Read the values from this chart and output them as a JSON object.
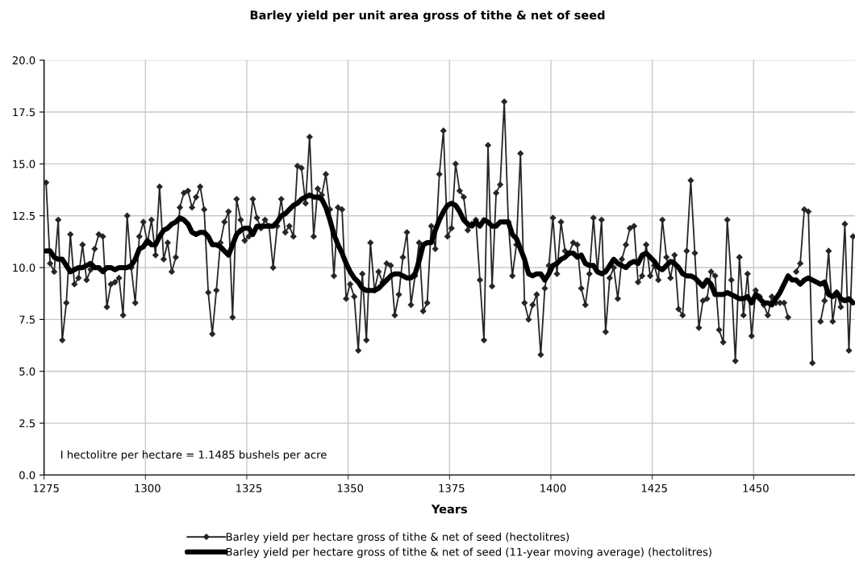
{
  "chart_data": {
    "type": "line",
    "title": "Barley yield per unit area gross of tithe & net of seed",
    "xlabel": "Years",
    "annotations": [
      "I hectolitre per hectare = 1.1485 bushels per acre"
    ],
    "categories": [
      "1275",
      null,
      null,
      null,
      null,
      null,
      null,
      null,
      null,
      null,
      null,
      null,
      null,
      null,
      null,
      null,
      null,
      null,
      null,
      null,
      null,
      null,
      null,
      null,
      null,
      "1300",
      null,
      null,
      null,
      null,
      null,
      null,
      null,
      null,
      null,
      null,
      null,
      null,
      null,
      null,
      null,
      null,
      null,
      null,
      null,
      null,
      null,
      null,
      null,
      null,
      "1325",
      null,
      null,
      null,
      null,
      null,
      null,
      null,
      null,
      null,
      null,
      null,
      null,
      null,
      null,
      null,
      null,
      null,
      null,
      null,
      null,
      null,
      null,
      null,
      null,
      "1350",
      null,
      null,
      null,
      null,
      null,
      null,
      null,
      null,
      null,
      null,
      null,
      null,
      null,
      null,
      null,
      null,
      null,
      null,
      null,
      null,
      null,
      null,
      null,
      null,
      "1375",
      null,
      null,
      null,
      null,
      null,
      null,
      null,
      null,
      null,
      null,
      null,
      null,
      null,
      null,
      null,
      null,
      null,
      null,
      null,
      null,
      null,
      null,
      null,
      null,
      "1400",
      null,
      null,
      null,
      null,
      null,
      null,
      null,
      null,
      null,
      null,
      null,
      null,
      null,
      null,
      null,
      null,
      null,
      null,
      null,
      null,
      null,
      null,
      null,
      null,
      "1425",
      null,
      null,
      null,
      null,
      null,
      null,
      null,
      null,
      null,
      null,
      null,
      null,
      null,
      null,
      null,
      null,
      null,
      null,
      null,
      null,
      null,
      null,
      null,
      null,
      "1450",
      null,
      null,
      null,
      null,
      null,
      null,
      null,
      null,
      null,
      null,
      null,
      null,
      null,
      null,
      null,
      null,
      null,
      null,
      null,
      null,
      null,
      null,
      null,
      null
    ],
    "series": [
      {
        "name": "Barley yield per hectare gross of tithe & net of seed (hectolitres)",
        "color": "#262626",
        "marker": "diamond",
        "values": [
          14.1,
          10.2,
          9.8,
          12.3,
          6.5,
          8.3,
          11.6,
          9.2,
          9.5,
          11.1,
          9.4,
          9.9,
          10.9,
          11.6,
          11.5,
          8.1,
          9.2,
          9.3,
          9.5,
          7.7,
          12.5,
          10.0,
          8.3,
          11.5,
          12.2,
          11.2,
          12.3,
          10.6,
          13.9,
          10.4,
          11.2,
          9.8,
          10.5,
          12.9,
          13.6,
          13.7,
          12.9,
          13.4,
          13.9,
          12.8,
          8.8,
          6.8,
          8.9,
          11.2,
          12.2,
          12.7,
          7.6,
          13.3,
          12.3,
          11.3,
          11.5,
          13.3,
          12.4,
          11.9,
          12.3,
          12.0,
          10.0,
          12.0,
          13.3,
          11.7,
          12.0,
          11.5,
          14.9,
          14.8,
          13.1,
          16.3,
          11.5,
          13.8,
          13.5,
          14.5,
          12.8,
          9.6,
          12.9,
          12.8,
          8.5,
          9.2,
          8.6,
          6.0,
          9.7,
          6.5,
          11.2,
          8.9,
          9.8,
          9.3,
          10.2,
          10.1,
          7.7,
          8.7,
          10.5,
          11.7,
          8.2,
          9.6,
          11.2,
          7.9,
          8.3,
          12.0,
          10.9,
          14.5,
          16.6,
          11.5,
          11.9,
          15.0,
          13.7,
          13.4,
          11.8,
          12.1,
          12.3,
          9.4,
          6.5,
          15.9,
          9.1,
          13.6,
          14.0,
          18.0,
          12.2,
          9.6,
          11.1,
          15.5,
          8.3,
          7.5,
          8.2,
          8.7,
          5.8,
          9.0,
          10.1,
          12.4,
          9.7,
          12.2,
          10.8,
          10.7,
          11.2,
          11.1,
          9.0,
          8.2,
          9.7,
          12.4,
          9.8,
          12.3,
          6.9,
          9.5,
          10.0,
          8.5,
          10.4,
          11.1,
          11.9,
          12.0,
          9.3,
          9.6,
          11.1,
          9.6,
          10.1,
          9.4,
          12.3,
          10.5,
          9.5,
          10.6,
          8.0,
          7.7,
          10.8,
          14.2,
          10.7,
          7.1,
          8.4,
          8.5,
          9.8,
          9.6,
          7.0,
          6.4,
          12.3,
          9.4,
          5.5,
          10.5,
          7.7,
          9.7,
          6.7,
          8.9,
          8.6,
          8.2,
          7.7,
          8.6,
          8.3,
          8.3,
          8.3,
          7.6,
          null,
          9.8,
          10.2,
          12.8,
          12.7,
          5.4,
          null,
          7.4,
          8.4,
          10.8,
          7.4,
          8.8,
          8.1,
          12.1,
          6.0,
          11.5
        ]
      },
      {
        "name": "Barley yield per hectare gross of tithe & net of seed (11-year moving average) (hectolitres)",
        "color": "#000000",
        "marker": "none",
        "values": [
          10.8,
          10.8,
          10.5,
          10.4,
          10.4,
          10.1,
          9.8,
          9.9,
          10.0,
          10.0,
          10.1,
          10.2,
          10.0,
          10.0,
          9.8,
          10.0,
          10.0,
          9.9,
          10.0,
          10.0,
          10.0,
          10.1,
          10.4,
          10.9,
          11.0,
          11.3,
          11.1,
          11.1,
          11.5,
          11.8,
          11.9,
          12.1,
          12.2,
          12.4,
          12.3,
          12.1,
          11.7,
          11.6,
          11.7,
          11.7,
          11.5,
          11.1,
          11.1,
          11.0,
          10.8,
          10.6,
          11.1,
          11.6,
          11.8,
          11.9,
          11.9,
          11.6,
          12.0,
          12.0,
          12.0,
          12.0,
          12.0,
          12.2,
          12.5,
          12.6,
          12.8,
          13.0,
          13.1,
          13.3,
          13.4,
          13.5,
          13.4,
          13.4,
          13.3,
          12.9,
          12.3,
          11.6,
          11.1,
          10.7,
          10.2,
          9.8,
          9.5,
          9.3,
          9.0,
          8.9,
          8.9,
          8.9,
          9.0,
          9.2,
          9.4,
          9.6,
          9.7,
          9.7,
          9.6,
          9.5,
          9.5,
          9.7,
          10.3,
          11.1,
          11.2,
          11.2,
          11.8,
          12.3,
          12.7,
          13.0,
          13.1,
          13.0,
          12.7,
          12.3,
          12.1,
          12.0,
          12.2,
          12.0,
          12.3,
          12.2,
          12.0,
          12.0,
          12.2,
          12.2,
          12.2,
          11.6,
          11.4,
          10.9,
          10.4,
          9.7,
          9.6,
          9.7,
          9.7,
          9.4,
          9.7,
          10.1,
          10.2,
          10.4,
          10.5,
          10.7,
          10.7,
          10.5,
          10.6,
          10.2,
          10.1,
          10.1,
          9.8,
          9.7,
          9.8,
          10.1,
          10.4,
          10.2,
          10.1,
          10.0,
          10.2,
          10.3,
          10.2,
          10.6,
          10.7,
          10.5,
          10.3,
          10.0,
          9.9,
          10.1,
          10.3,
          10.2,
          10.0,
          9.7,
          9.6,
          9.6,
          9.5,
          9.3,
          9.1,
          9.4,
          9.2,
          8.7,
          8.7,
          8.7,
          8.8,
          8.7,
          8.6,
          8.5,
          8.5,
          8.6,
          8.3,
          8.7,
          8.5,
          8.3,
          8.3,
          8.2,
          8.5,
          8.8,
          9.2,
          9.6,
          9.4,
          9.4,
          9.2,
          9.4,
          9.5,
          9.4,
          9.3,
          9.2,
          9.3,
          8.7,
          8.6,
          8.8,
          8.5,
          8.4,
          8.5,
          8.3
        ]
      }
    ],
    "ylim": [
      0,
      20
    ],
    "yticks": [
      {
        "value": 0,
        "label": "0.0"
      },
      2.5,
      {
        "value": 5,
        "label": "5.0"
      },
      7.5,
      {
        "value": 10,
        "label": "10.0"
      },
      12.5,
      {
        "value": 15,
        "label": "15.0"
      },
      17.5,
      {
        "value": 20,
        "label": "20.0"
      }
    ],
    "grid": true,
    "legend": "bottom",
    "line_style": "solid"
  }
}
